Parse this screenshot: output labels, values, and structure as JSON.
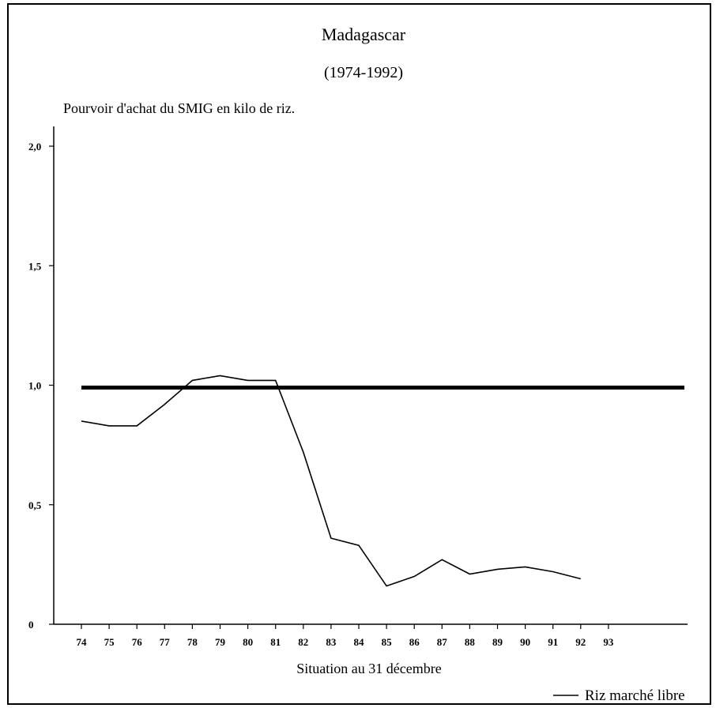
{
  "chart_data": {
    "type": "line",
    "title": "Madagascar",
    "subtitle": "(1974-1992)",
    "ylabel": "Pourvoir d'achat du SMIG en kilo de riz.",
    "xlabel": "Situation au 31 décembre",
    "x_ticks": [
      "74",
      "75",
      "76",
      "77",
      "78",
      "79",
      "80",
      "81",
      "82",
      "83",
      "84",
      "85",
      "86",
      "87",
      "88",
      "89",
      "90",
      "91",
      "92",
      "93"
    ],
    "y_ticks": [
      "0",
      "0,5",
      "1,0",
      "1,5",
      "2,0"
    ],
    "ylim": [
      0,
      2.0
    ],
    "reference_line": {
      "value": 0.99
    },
    "series": [
      {
        "name": "Riz marché libre",
        "x": [
          "74",
          "75",
          "76",
          "77",
          "78",
          "79",
          "80",
          "81",
          "82",
          "83",
          "84",
          "85",
          "86",
          "87",
          "88",
          "89",
          "90",
          "91",
          "92"
        ],
        "values": [
          0.85,
          0.83,
          0.83,
          0.92,
          1.02,
          1.04,
          1.02,
          1.02,
          0.72,
          0.36,
          0.33,
          0.16,
          0.2,
          0.27,
          0.21,
          0.23,
          0.24,
          0.22,
          0.19
        ]
      }
    ],
    "grid": false,
    "legend": "bottom-right"
  }
}
